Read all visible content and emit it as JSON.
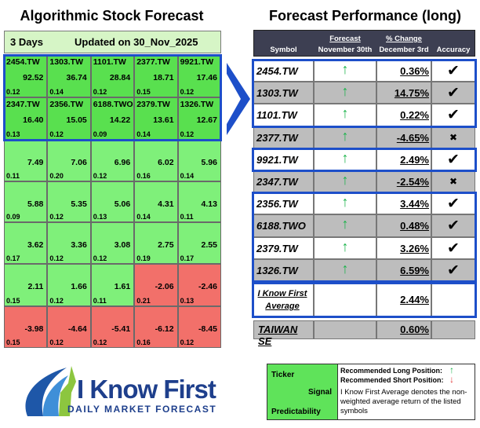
{
  "left": {
    "title": "Algorithmic Stock Forecast",
    "horizon": "3 Days",
    "updated": "Updated on 30_Nov_2025",
    "rows": [
      [
        {
          "ticker": "2454.TW",
          "signal": "92.52",
          "predictability": "0.12"
        },
        {
          "ticker": "1303.TW",
          "signal": "36.74",
          "predictability": "0.14"
        },
        {
          "ticker": "1101.TW",
          "signal": "28.84",
          "predictability": "0.12"
        },
        {
          "ticker": "2377.TW",
          "signal": "18.71",
          "predictability": "0.15"
        },
        {
          "ticker": "9921.TW",
          "signal": "17.46",
          "predictability": "0.12"
        }
      ],
      [
        {
          "ticker": "2347.TW",
          "signal": "16.40",
          "predictability": "0.13"
        },
        {
          "ticker": "2356.TW",
          "signal": "15.05",
          "predictability": "0.12"
        },
        {
          "ticker": "6188.TWO",
          "signal": "14.22",
          "predictability": "0.09"
        },
        {
          "ticker": "2379.TW",
          "signal": "13.61",
          "predictability": "0.14"
        },
        {
          "ticker": "1326.TW",
          "signal": "12.67",
          "predictability": "0.12"
        }
      ],
      [
        {
          "signal": "7.49",
          "predictability": "0.11"
        },
        {
          "signal": "7.06",
          "predictability": "0.20"
        },
        {
          "signal": "6.96",
          "predictability": "0.12"
        },
        {
          "signal": "6.02",
          "predictability": "0.16"
        },
        {
          "signal": "5.96",
          "predictability": "0.14"
        }
      ],
      [
        {
          "signal": "5.88",
          "predictability": "0.09"
        },
        {
          "signal": "5.35",
          "predictability": "0.12"
        },
        {
          "signal": "5.06",
          "predictability": "0.13"
        },
        {
          "signal": "4.31",
          "predictability": "0.14"
        },
        {
          "signal": "4.13",
          "predictability": "0.11"
        }
      ],
      [
        {
          "signal": "3.62",
          "predictability": "0.17"
        },
        {
          "signal": "3.36",
          "predictability": "0.12"
        },
        {
          "signal": "3.08",
          "predictability": "0.12"
        },
        {
          "signal": "2.75",
          "predictability": "0.19"
        },
        {
          "signal": "2.55",
          "predictability": "0.17"
        }
      ],
      [
        {
          "signal": "2.11",
          "predictability": "0.15"
        },
        {
          "signal": "1.66",
          "predictability": "0.12"
        },
        {
          "signal": "1.61",
          "predictability": "0.11"
        },
        {
          "signal": "-2.06",
          "predictability": "0.21"
        },
        {
          "signal": "-2.46",
          "predictability": "0.13"
        }
      ],
      [
        {
          "signal": "-3.98",
          "predictability": "0.15"
        },
        {
          "signal": "-4.64",
          "predictability": "0.12"
        },
        {
          "signal": "-5.41",
          "predictability": "0.12"
        },
        {
          "signal": "-6.12",
          "predictability": "0.16"
        },
        {
          "signal": "-8.45",
          "predictability": "0.12"
        }
      ]
    ]
  },
  "right": {
    "title": "Forecast Performance (long)",
    "headers": {
      "symbol": "Symbol",
      "forecast": "Forecast",
      "forecast_date": "November 30th",
      "change": "% Change",
      "change_date": "December 3rd",
      "accuracy": "Accuracy"
    },
    "rows": [
      {
        "symbol": "2454.TW",
        "change": "0.36%",
        "accuracy": "✔"
      },
      {
        "symbol": "1303.TW",
        "change": "14.75%",
        "accuracy": "✔"
      },
      {
        "symbol": "1101.TW",
        "change": "0.22%",
        "accuracy": "✔"
      },
      {
        "symbol": "2377.TW",
        "change": "-4.65%",
        "accuracy": "✖"
      },
      {
        "symbol": "9921.TW",
        "change": "2.49%",
        "accuracy": "✔"
      },
      {
        "symbol": "2347.TW",
        "change": "-2.54%",
        "accuracy": "✖"
      },
      {
        "symbol": "2356.TW",
        "change": "3.44%",
        "accuracy": "✔"
      },
      {
        "symbol": "6188.TWO",
        "change": "0.48%",
        "accuracy": "✔"
      },
      {
        "symbol": "2379.TW",
        "change": "3.26%",
        "accuracy": "✔"
      },
      {
        "symbol": "1326.TW",
        "change": "6.59%",
        "accuracy": "✔"
      }
    ],
    "average": {
      "label": "I Know First Average",
      "change": "2.44%"
    },
    "benchmark": {
      "label": "TAIWAN SE",
      "change": "0.60%"
    }
  },
  "logo": {
    "brand": "I Know First",
    "tagline": "Daily Market Forecast"
  },
  "legend": {
    "ticker": "Ticker",
    "signal": "Signal",
    "predictability": "Predictability",
    "long": "Recommended Long Position:",
    "short": "Recommended Short Position:",
    "note": "I Know First Average denotes the non-weighted average return of the listed symbols"
  }
}
